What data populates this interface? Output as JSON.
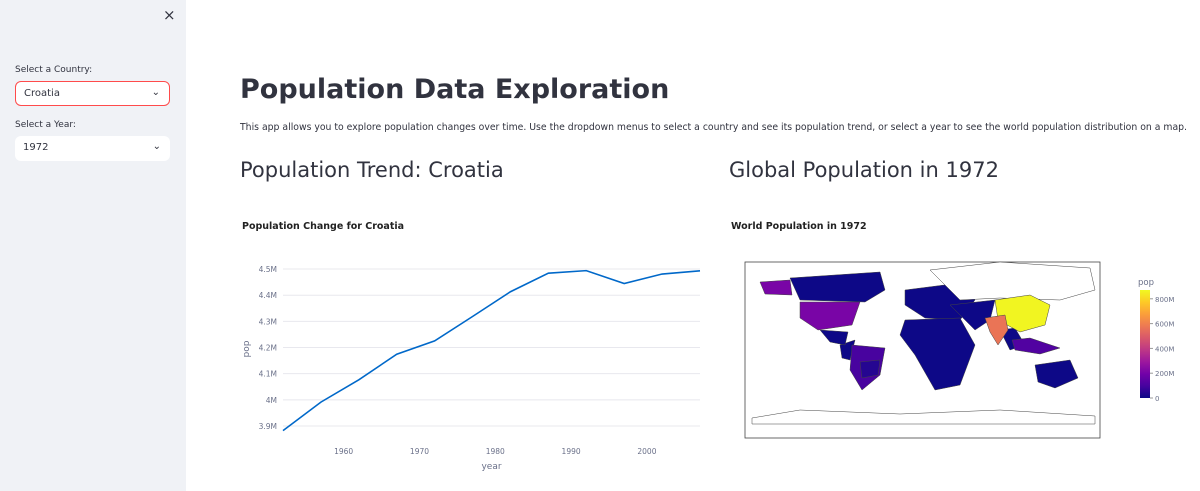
{
  "sidebar": {
    "close": "×",
    "country_label": "Select a Country:",
    "country": "Croatia",
    "year_label": "Select a Year:",
    "year": "1972"
  },
  "main": {
    "title": "Population Data Exploration",
    "description": "This app allows you to explore population changes over time. Use the dropdown menus to select a country and see its population trend, or select a year to see the world population distribution on a map.",
    "trend_heading": "Population Trend: Croatia",
    "map_heading": "Global Population in 1972"
  },
  "chart_data": [
    {
      "type": "line",
      "title": "Population Change for Croatia",
      "x_label": "year",
      "y_label": "pop",
      "color": "#0068c9",
      "x": [
        1952,
        1957,
        1962,
        1967,
        1972,
        1977,
        1982,
        1987,
        1992,
        1997,
        2002,
        2007
      ],
      "values": [
        3882229,
        3991242,
        4076557,
        4174366,
        4225310,
        4318673,
        4413368,
        4484310,
        4494013,
        4444595,
        4481020,
        4493312
      ],
      "xlim": [
        1952,
        2007
      ],
      "xticks": [
        1960,
        1970,
        1980,
        1990,
        2000
      ],
      "ylim": [
        3877000,
        4527000
      ],
      "yticks": [
        {
          "value": 3900000,
          "label": "3.9M"
        },
        {
          "value": 4000000,
          "label": "4M"
        },
        {
          "value": 4100000,
          "label": "4.1M"
        },
        {
          "value": 4200000,
          "label": "4.2M"
        },
        {
          "value": 4300000,
          "label": "4.3M"
        },
        {
          "value": 4400000,
          "label": "4.4M"
        },
        {
          "value": 4500000,
          "label": "4.5M"
        }
      ],
      "grid": true
    },
    {
      "type": "choropleth",
      "title": "World Population in 1972",
      "colorbar_title": "pop",
      "values": [
        862030000,
        567000000,
        209896000,
        100840000,
        121282000,
        40000000
      ],
      "clim": [
        0,
        871000000
      ],
      "cticks": [
        {
          "value": 0,
          "label": "0"
        },
        {
          "value": 200000000,
          "label": "200M"
        },
        {
          "value": 400000000,
          "label": "400M"
        },
        {
          "value": 600000000,
          "label": "600M"
        },
        {
          "value": 800000000,
          "label": "800M"
        }
      ],
      "colorscale": [
        "#0d0887",
        "#46039f",
        "#7201a8",
        "#9c179e",
        "#bd3786",
        "#d8576b",
        "#ed7953",
        "#fb9f3a",
        "#fdca26",
        "#f0f921"
      ]
    }
  ]
}
